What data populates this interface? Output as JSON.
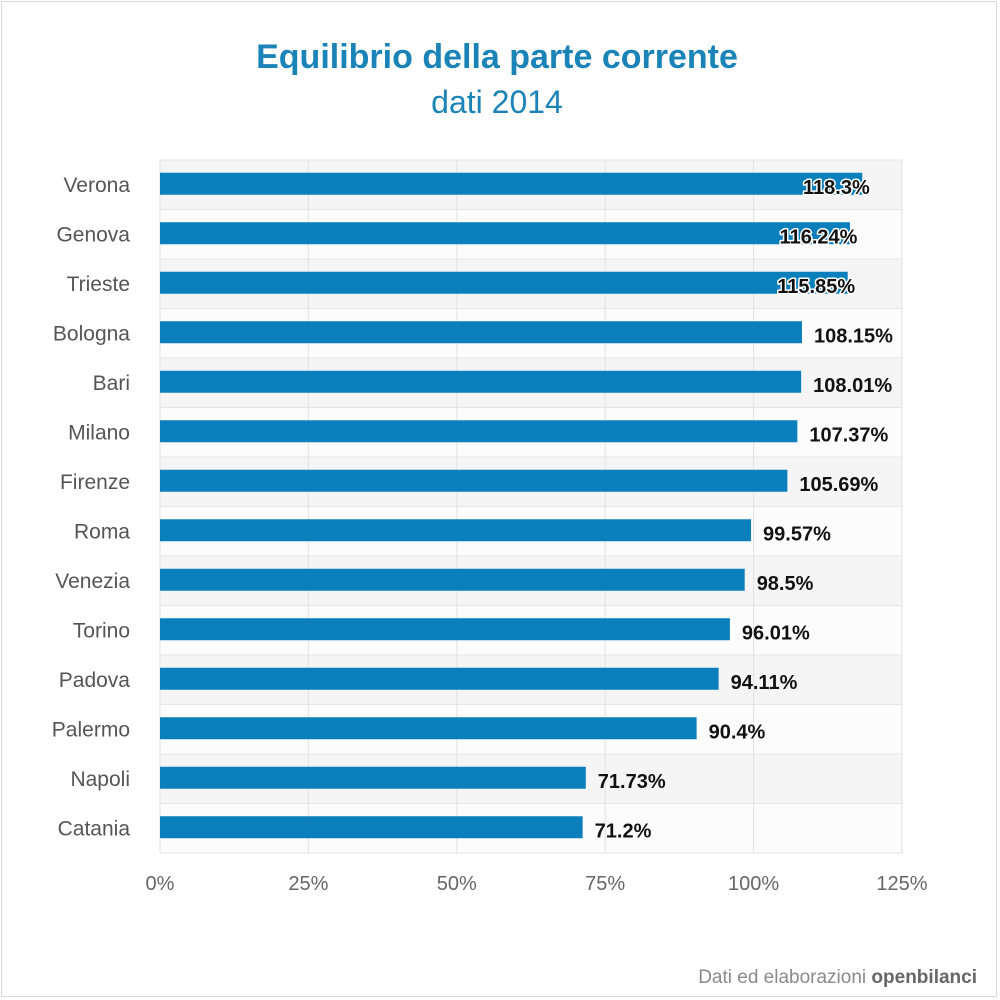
{
  "credit": {
    "prefix": "Dati ed elaborazioni",
    "brand": "openbilanci"
  },
  "chart_data": {
    "type": "bar",
    "orientation": "horizontal",
    "title": "Equilibrio della parte corrente",
    "subtitle": "dati 2014",
    "xlabel": "",
    "ylabel": "",
    "xlim": [
      0,
      125
    ],
    "ticks": [
      0,
      25,
      50,
      75,
      100,
      125
    ],
    "tick_labels": [
      "0%",
      "25%",
      "50%",
      "75%",
      "100%",
      "125%"
    ],
    "categories": [
      "Verona",
      "Genova",
      "Trieste",
      "Bologna",
      "Bari",
      "Milano",
      "Firenze",
      "Roma",
      "Venezia",
      "Torino",
      "Padova",
      "Palermo",
      "Napoli",
      "Catania"
    ],
    "values": [
      118.3,
      116.24,
      115.85,
      108.15,
      108.01,
      107.37,
      105.69,
      99.57,
      98.5,
      96.01,
      94.11,
      90.4,
      71.73,
      71.2
    ],
    "value_labels": [
      "118.3%",
      "116.24%",
      "115.85%",
      "108.15%",
      "108.01%",
      "107.37%",
      "105.69%",
      "99.57%",
      "98.5%",
      "96.01%",
      "94.11%",
      "90.4%",
      "71.73%",
      "71.2%"
    ],
    "bar_color": "#0a7fbc",
    "grid": true,
    "legend": "none"
  }
}
